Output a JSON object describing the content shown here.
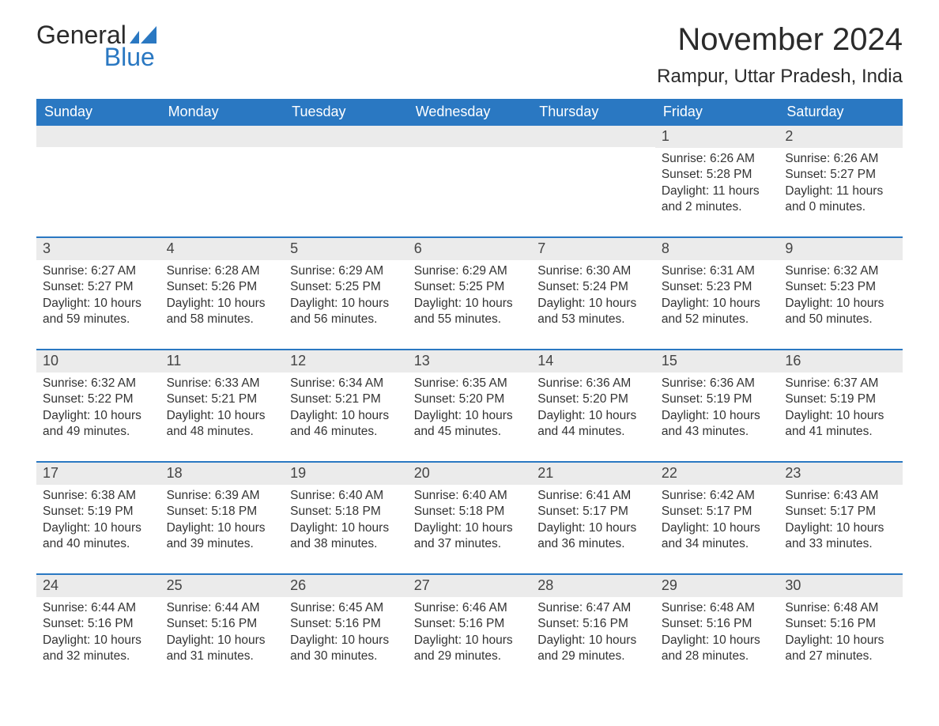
{
  "logo": {
    "general": "General",
    "blue": "Blue",
    "mark_color": "#2a78c2"
  },
  "title": "November 2024",
  "location": "Rampur, Uttar Pradesh, India",
  "styling": {
    "header_bg": "#2a78c2",
    "header_text": "#ffffff",
    "daynum_bg": "#ebebeb",
    "border_color": "#2a78c2",
    "body_text": "#333333",
    "page_bg": "#ffffff",
    "month_title_fontsize": 40,
    "location_fontsize": 24,
    "dow_fontsize": 18,
    "body_fontsize": 15.5
  },
  "days_of_week": [
    "Sunday",
    "Monday",
    "Tuesday",
    "Wednesday",
    "Thursday",
    "Friday",
    "Saturday"
  ],
  "weeks": [
    [
      null,
      null,
      null,
      null,
      null,
      {
        "n": "1",
        "sunrise": "Sunrise: 6:26 AM",
        "sunset": "Sunset: 5:28 PM",
        "daylight": "Daylight: 11 hours and 2 minutes."
      },
      {
        "n": "2",
        "sunrise": "Sunrise: 6:26 AM",
        "sunset": "Sunset: 5:27 PM",
        "daylight": "Daylight: 11 hours and 0 minutes."
      }
    ],
    [
      {
        "n": "3",
        "sunrise": "Sunrise: 6:27 AM",
        "sunset": "Sunset: 5:27 PM",
        "daylight": "Daylight: 10 hours and 59 minutes."
      },
      {
        "n": "4",
        "sunrise": "Sunrise: 6:28 AM",
        "sunset": "Sunset: 5:26 PM",
        "daylight": "Daylight: 10 hours and 58 minutes."
      },
      {
        "n": "5",
        "sunrise": "Sunrise: 6:29 AM",
        "sunset": "Sunset: 5:25 PM",
        "daylight": "Daylight: 10 hours and 56 minutes."
      },
      {
        "n": "6",
        "sunrise": "Sunrise: 6:29 AM",
        "sunset": "Sunset: 5:25 PM",
        "daylight": "Daylight: 10 hours and 55 minutes."
      },
      {
        "n": "7",
        "sunrise": "Sunrise: 6:30 AM",
        "sunset": "Sunset: 5:24 PM",
        "daylight": "Daylight: 10 hours and 53 minutes."
      },
      {
        "n": "8",
        "sunrise": "Sunrise: 6:31 AM",
        "sunset": "Sunset: 5:23 PM",
        "daylight": "Daylight: 10 hours and 52 minutes."
      },
      {
        "n": "9",
        "sunrise": "Sunrise: 6:32 AM",
        "sunset": "Sunset: 5:23 PM",
        "daylight": "Daylight: 10 hours and 50 minutes."
      }
    ],
    [
      {
        "n": "10",
        "sunrise": "Sunrise: 6:32 AM",
        "sunset": "Sunset: 5:22 PM",
        "daylight": "Daylight: 10 hours and 49 minutes."
      },
      {
        "n": "11",
        "sunrise": "Sunrise: 6:33 AM",
        "sunset": "Sunset: 5:21 PM",
        "daylight": "Daylight: 10 hours and 48 minutes."
      },
      {
        "n": "12",
        "sunrise": "Sunrise: 6:34 AM",
        "sunset": "Sunset: 5:21 PM",
        "daylight": "Daylight: 10 hours and 46 minutes."
      },
      {
        "n": "13",
        "sunrise": "Sunrise: 6:35 AM",
        "sunset": "Sunset: 5:20 PM",
        "daylight": "Daylight: 10 hours and 45 minutes."
      },
      {
        "n": "14",
        "sunrise": "Sunrise: 6:36 AM",
        "sunset": "Sunset: 5:20 PM",
        "daylight": "Daylight: 10 hours and 44 minutes."
      },
      {
        "n": "15",
        "sunrise": "Sunrise: 6:36 AM",
        "sunset": "Sunset: 5:19 PM",
        "daylight": "Daylight: 10 hours and 43 minutes."
      },
      {
        "n": "16",
        "sunrise": "Sunrise: 6:37 AM",
        "sunset": "Sunset: 5:19 PM",
        "daylight": "Daylight: 10 hours and 41 minutes."
      }
    ],
    [
      {
        "n": "17",
        "sunrise": "Sunrise: 6:38 AM",
        "sunset": "Sunset: 5:19 PM",
        "daylight": "Daylight: 10 hours and 40 minutes."
      },
      {
        "n": "18",
        "sunrise": "Sunrise: 6:39 AM",
        "sunset": "Sunset: 5:18 PM",
        "daylight": "Daylight: 10 hours and 39 minutes."
      },
      {
        "n": "19",
        "sunrise": "Sunrise: 6:40 AM",
        "sunset": "Sunset: 5:18 PM",
        "daylight": "Daylight: 10 hours and 38 minutes."
      },
      {
        "n": "20",
        "sunrise": "Sunrise: 6:40 AM",
        "sunset": "Sunset: 5:18 PM",
        "daylight": "Daylight: 10 hours and 37 minutes."
      },
      {
        "n": "21",
        "sunrise": "Sunrise: 6:41 AM",
        "sunset": "Sunset: 5:17 PM",
        "daylight": "Daylight: 10 hours and 36 minutes."
      },
      {
        "n": "22",
        "sunrise": "Sunrise: 6:42 AM",
        "sunset": "Sunset: 5:17 PM",
        "daylight": "Daylight: 10 hours and 34 minutes."
      },
      {
        "n": "23",
        "sunrise": "Sunrise: 6:43 AM",
        "sunset": "Sunset: 5:17 PM",
        "daylight": "Daylight: 10 hours and 33 minutes."
      }
    ],
    [
      {
        "n": "24",
        "sunrise": "Sunrise: 6:44 AM",
        "sunset": "Sunset: 5:16 PM",
        "daylight": "Daylight: 10 hours and 32 minutes."
      },
      {
        "n": "25",
        "sunrise": "Sunrise: 6:44 AM",
        "sunset": "Sunset: 5:16 PM",
        "daylight": "Daylight: 10 hours and 31 minutes."
      },
      {
        "n": "26",
        "sunrise": "Sunrise: 6:45 AM",
        "sunset": "Sunset: 5:16 PM",
        "daylight": "Daylight: 10 hours and 30 minutes."
      },
      {
        "n": "27",
        "sunrise": "Sunrise: 6:46 AM",
        "sunset": "Sunset: 5:16 PM",
        "daylight": "Daylight: 10 hours and 29 minutes."
      },
      {
        "n": "28",
        "sunrise": "Sunrise: 6:47 AM",
        "sunset": "Sunset: 5:16 PM",
        "daylight": "Daylight: 10 hours and 29 minutes."
      },
      {
        "n": "29",
        "sunrise": "Sunrise: 6:48 AM",
        "sunset": "Sunset: 5:16 PM",
        "daylight": "Daylight: 10 hours and 28 minutes."
      },
      {
        "n": "30",
        "sunrise": "Sunrise: 6:48 AM",
        "sunset": "Sunset: 5:16 PM",
        "daylight": "Daylight: 10 hours and 27 minutes."
      }
    ]
  ]
}
